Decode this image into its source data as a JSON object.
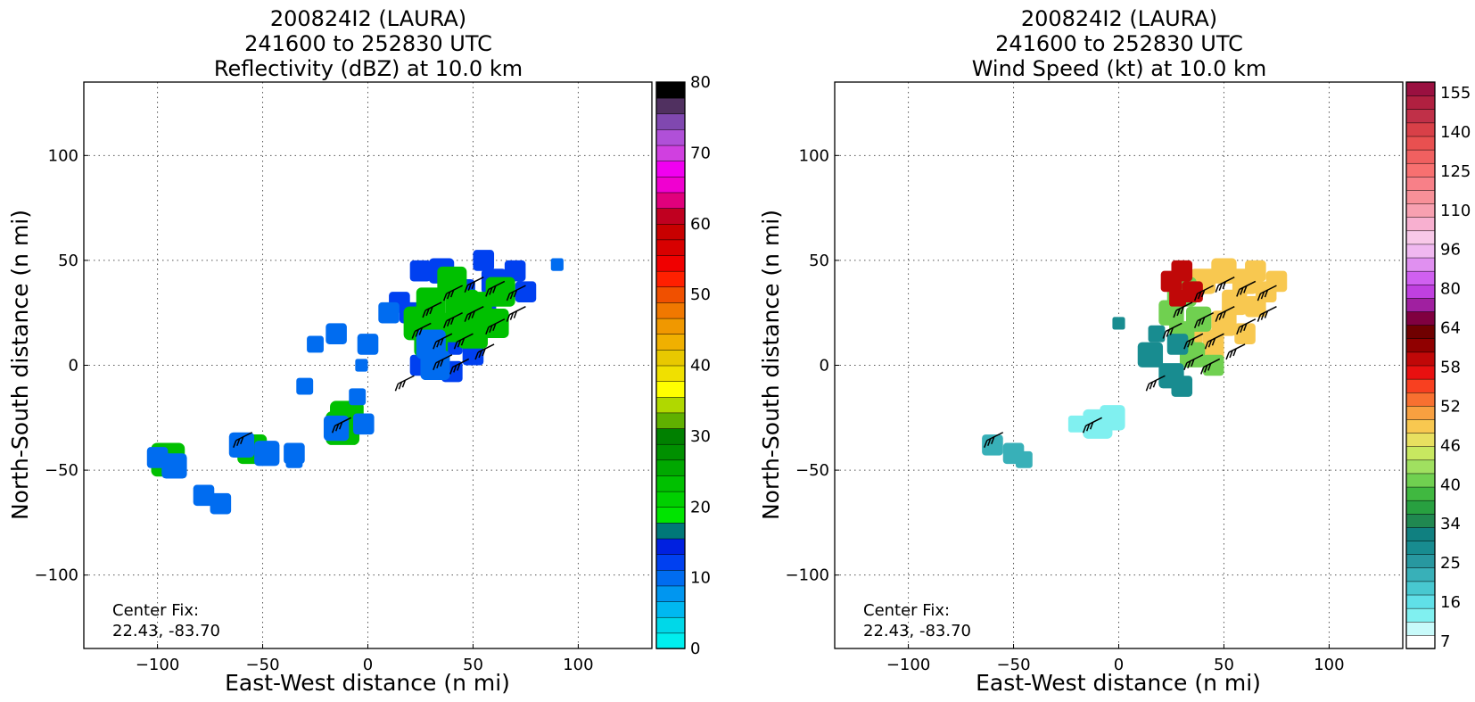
{
  "chart_data": [
    {
      "type": "heatmap",
      "title": [
        "200824I2 (LAURA)",
        "241600 to 252830 UTC",
        "Reflectivity (dBZ) at 10.0 km"
      ],
      "xlabel": "East-West distance (n mi)",
      "ylabel": "North-South distance (n mi)",
      "xlim": [
        -135,
        135
      ],
      "ylim": [
        -135,
        135
      ],
      "xticks": [
        "−100",
        "−50",
        "0",
        "50",
        "100"
      ],
      "xtick_values": [
        -100,
        -50,
        0,
        50,
        100
      ],
      "yticks": [
        "100",
        "50",
        "0",
        "−50",
        "−100"
      ],
      "ytick_values": [
        100,
        50,
        0,
        -50,
        -100
      ],
      "grid": true,
      "annotation": [
        "Center Fix:",
        "22.43, -83.70"
      ],
      "colorbar": {
        "min": 0,
        "max": 80,
        "labels": [
          "80",
          "70",
          "60",
          "50",
          "40",
          "30",
          "20",
          "10",
          "0"
        ],
        "label_values": [
          80,
          70,
          60,
          50,
          40,
          30,
          20,
          10,
          0
        ],
        "colors": [
          "#00eeee",
          "#00d8e8",
          "#00b8f0",
          "#0096f0",
          "#006cf0",
          "#0040f0",
          "#0020e0",
          "#007878",
          "#00e400",
          "#00d000",
          "#00c000",
          "#00a800",
          "#009000",
          "#008000",
          "#60b000",
          "#b0d800",
          "#ffff00",
          "#f0e000",
          "#e8c800",
          "#f0b000",
          "#f09800",
          "#f07800",
          "#f05000",
          "#ff2000",
          "#f00000",
          "#d80000",
          "#c80000",
          "#c00020",
          "#e0007c",
          "#f000d0",
          "#f000f0",
          "#d040e0",
          "#b050d8",
          "#8048b0",
          "#503060",
          "#000000"
        ]
      },
      "series": [
        {
          "cells": [
            [
              30,
              25,
              6
            ],
            [
              45,
              35,
              6
            ],
            [
              60,
              40,
              6
            ],
            [
              40,
              10,
              5
            ],
            [
              25,
              0,
              5
            ],
            [
              45,
              15,
              6
            ],
            [
              55,
              25,
              6
            ],
            [
              35,
              45,
              6
            ],
            [
              55,
              50,
              5
            ],
            [
              70,
              45,
              5
            ],
            [
              20,
              25,
              5
            ],
            [
              25,
              45,
              5
            ],
            [
              75,
              35,
              5
            ],
            [
              50,
              5,
              5
            ],
            [
              15,
              30,
              5
            ],
            [
              40,
              -3,
              5
            ]
          ]
        },
        {
          "cells": [
            [
              30,
              30,
              7
            ],
            [
              45,
              28,
              8
            ],
            [
              38,
              18,
              7
            ],
            [
              52,
              28,
              7
            ],
            [
              50,
              15,
              7
            ],
            [
              60,
              20,
              7
            ],
            [
              30,
              12,
              8
            ],
            [
              25,
              20,
              8
            ],
            [
              40,
              40,
              7
            ],
            [
              63,
              35,
              7
            ],
            [
              -12,
              -30,
              8
            ],
            [
              -95,
              -45,
              8
            ],
            [
              -55,
              -40,
              7
            ],
            [
              -10,
              -25,
              8
            ]
          ]
        },
        {
          "cells": [
            [
              30,
              10,
              7
            ],
            [
              32,
              0,
              7
            ],
            [
              -92,
              -48,
              6
            ],
            [
              -100,
              -44,
              5
            ],
            [
              -78,
              -62,
              5
            ],
            [
              -70,
              -66,
              5
            ],
            [
              -48,
              -42,
              6
            ],
            [
              -35,
              -42,
              5
            ],
            [
              -60,
              -38,
              6
            ],
            [
              -15,
              -30,
              6
            ],
            [
              -2,
              -28,
              5
            ],
            [
              10,
              25,
              5
            ],
            [
              0,
              10,
              5
            ],
            [
              -15,
              15,
              5
            ],
            [
              -25,
              10,
              4
            ],
            [
              -30,
              -10,
              4
            ],
            [
              -5,
              -15,
              4
            ],
            [
              90,
              48,
              3
            ],
            [
              -3,
              0,
              3
            ],
            [
              -35,
              -45,
              4
            ]
          ]
        }
      ],
      "barbs": [
        [
          35,
          30
        ],
        [
          45,
          38
        ],
        [
          55,
          42
        ],
        [
          65,
          40
        ],
        [
          75,
          38
        ],
        [
          45,
          25
        ],
        [
          55,
          28
        ],
        [
          65,
          22
        ],
        [
          75,
          28
        ],
        [
          40,
          15
        ],
        [
          50,
          15
        ],
        [
          60,
          10
        ],
        [
          30,
          20
        ],
        [
          40,
          5
        ],
        [
          48,
          3
        ],
        [
          22,
          -5
        ],
        [
          -55,
          -32
        ],
        [
          -8,
          -25
        ]
      ]
    },
    {
      "type": "heatmap",
      "title": [
        "200824I2 (LAURA)",
        "241600 to 252830 UTC",
        "Wind Speed (kt) at 10.0 km"
      ],
      "xlabel": "East-West distance (n mi)",
      "ylabel": "North-South distance (n mi)",
      "xlim": [
        -135,
        135
      ],
      "ylim": [
        -135,
        135
      ],
      "xticks": [
        "−100",
        "−50",
        "0",
        "50",
        "100"
      ],
      "xtick_values": [
        -100,
        -50,
        0,
        50,
        100
      ],
      "yticks": [
        "100",
        "50",
        "0",
        "−50",
        "−100"
      ],
      "ytick_values": [
        100,
        50,
        0,
        -50,
        -100
      ],
      "grid": true,
      "annotation": [
        "Center Fix:",
        "22.43, -83.70"
      ],
      "colorbar": {
        "labels": [
          "155",
          "140",
          "125",
          "110",
          "96",
          "80",
          "64",
          "58",
          "52",
          "46",
          "40",
          "34",
          "25",
          "16",
          "7"
        ],
        "colors": [
          "#ffffff",
          "#c8fafa",
          "#80f0f0",
          "#60e0e8",
          "#48c8d0",
          "#38b0b8",
          "#2898a0",
          "#188c90",
          "#108080",
          "#208850",
          "#28a040",
          "#40b840",
          "#70d050",
          "#a0e060",
          "#c8e860",
          "#e8e060",
          "#f8c850",
          "#f8a040",
          "#f87030",
          "#f84020",
          "#e81010",
          "#c00808",
          "#900000",
          "#700000",
          "#800040",
          "#a020a0",
          "#c040e0",
          "#d060f0",
          "#e090f0",
          "#f0b8f0",
          "#f8c8e8",
          "#f8b0d0",
          "#f8a0b0",
          "#f89098",
          "#f88088",
          "#f87070",
          "#f06060",
          "#e85050",
          "#d84048",
          "#c03048",
          "#b02040",
          "#9a1040"
        ]
      },
      "series": [
        {
          "cells": [
            [
              40,
              40,
              6
            ],
            [
              50,
              45,
              6
            ],
            [
              60,
              40,
              6
            ],
            [
              65,
              45,
              5
            ],
            [
              55,
              30,
              6
            ],
            [
              65,
              28,
              5
            ],
            [
              70,
              35,
              5
            ],
            [
              50,
              20,
              6
            ],
            [
              60,
              15,
              5
            ],
            [
              45,
              12,
              5
            ],
            [
              75,
              40,
              5
            ],
            [
              35,
              15,
              5
            ],
            [
              45,
              5,
              5
            ]
          ]
        },
        {
          "cells": [
            [
              30,
              35,
              7
            ],
            [
              25,
              25,
              6
            ],
            [
              30,
              15,
              6
            ],
            [
              38,
              22,
              6
            ],
            [
              35,
              5,
              6
            ],
            [
              45,
              0,
              5
            ]
          ]
        },
        {
          "cells": [
            [
              25,
              40,
              5
            ],
            [
              30,
              45,
              5
            ],
            [
              28,
              32,
              4
            ],
            [
              35,
              35,
              5
            ]
          ]
        },
        {
          "cells": [
            [
              15,
              5,
              6
            ],
            [
              25,
              -5,
              6
            ],
            [
              30,
              -10,
              5
            ],
            [
              18,
              15,
              4
            ],
            [
              28,
              10,
              5
            ],
            [
              0,
              20,
              3
            ]
          ]
        },
        {
          "cells": [
            [
              -60,
              -38,
              5
            ],
            [
              -50,
              -42,
              5
            ],
            [
              -45,
              -45,
              4
            ]
          ]
        },
        {
          "cells": [
            [
              -10,
              -28,
              7
            ],
            [
              -3,
              -25,
              6
            ],
            [
              -20,
              -28,
              4
            ]
          ]
        }
      ],
      "barbs": [
        [
          35,
          30
        ],
        [
          45,
          38
        ],
        [
          55,
          42
        ],
        [
          65,
          40
        ],
        [
          75,
          38
        ],
        [
          45,
          25
        ],
        [
          55,
          28
        ],
        [
          65,
          22
        ],
        [
          75,
          28
        ],
        [
          40,
          15
        ],
        [
          50,
          15
        ],
        [
          60,
          10
        ],
        [
          30,
          20
        ],
        [
          40,
          5
        ],
        [
          48,
          3
        ],
        [
          22,
          -5
        ],
        [
          -55,
          -32
        ],
        [
          -8,
          -25
        ]
      ]
    }
  ]
}
